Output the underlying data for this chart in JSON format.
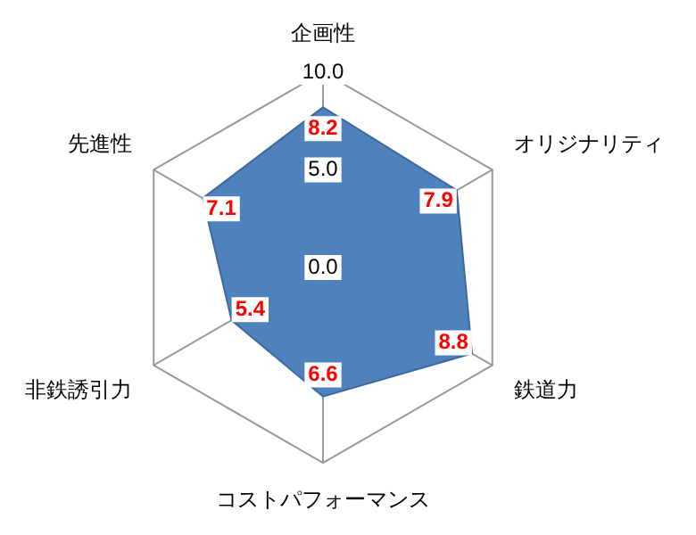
{
  "chart_data": {
    "type": "radar",
    "categories": [
      "企画性",
      "オリジナリティ",
      "鉄道力",
      "コストパフォーマンス",
      "非鉄誘引力",
      "先進性"
    ],
    "series": [
      {
        "color": "#4f81bd",
        "values": [
          8.2,
          7.9,
          8.8,
          6.6,
          5.4,
          7.1
        ]
      }
    ],
    "ylim": [
      0,
      10
    ],
    "yticks": [
      {
        "value": 0,
        "label": "0.0"
      },
      {
        "value": 5,
        "label": "5.0"
      },
      {
        "value": 10,
        "label": "10.0"
      }
    ],
    "legend": false,
    "data_labels": true,
    "marker": "none"
  }
}
